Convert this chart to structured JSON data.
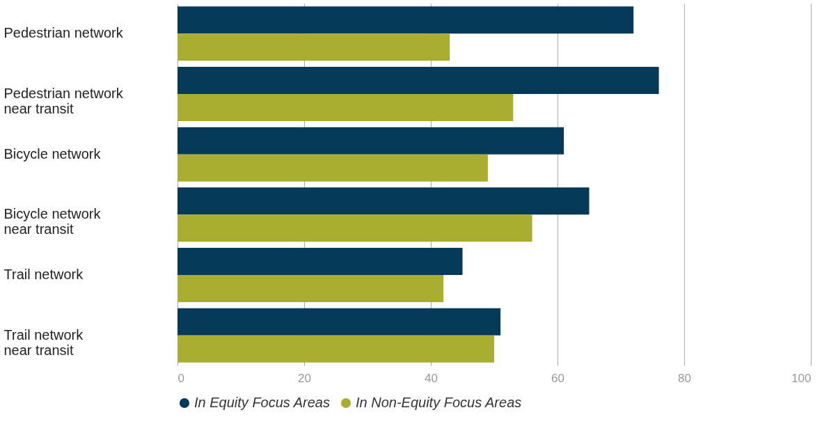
{
  "chart_data": {
    "type": "bar",
    "orientation": "horizontal",
    "categories": [
      "Pedestrian network",
      "Pedestrian network near transit",
      "Bicycle network",
      "Bicycle network near transit",
      "Trail network",
      "Trail network near transit"
    ],
    "series": [
      {
        "name": "In Equity Focus Areas",
        "color": "#04395a",
        "values": [
          72,
          76,
          61,
          65,
          45,
          51
        ]
      },
      {
        "name": "In Non-Equity Focus Areas",
        "color": "#a9ae30",
        "values": [
          43,
          53,
          49,
          56,
          42,
          50
        ]
      }
    ],
    "xlim": [
      0,
      100
    ],
    "xticks": [
      0,
      20,
      40,
      60,
      80,
      100
    ],
    "grid": "x",
    "legend": "bottom"
  }
}
